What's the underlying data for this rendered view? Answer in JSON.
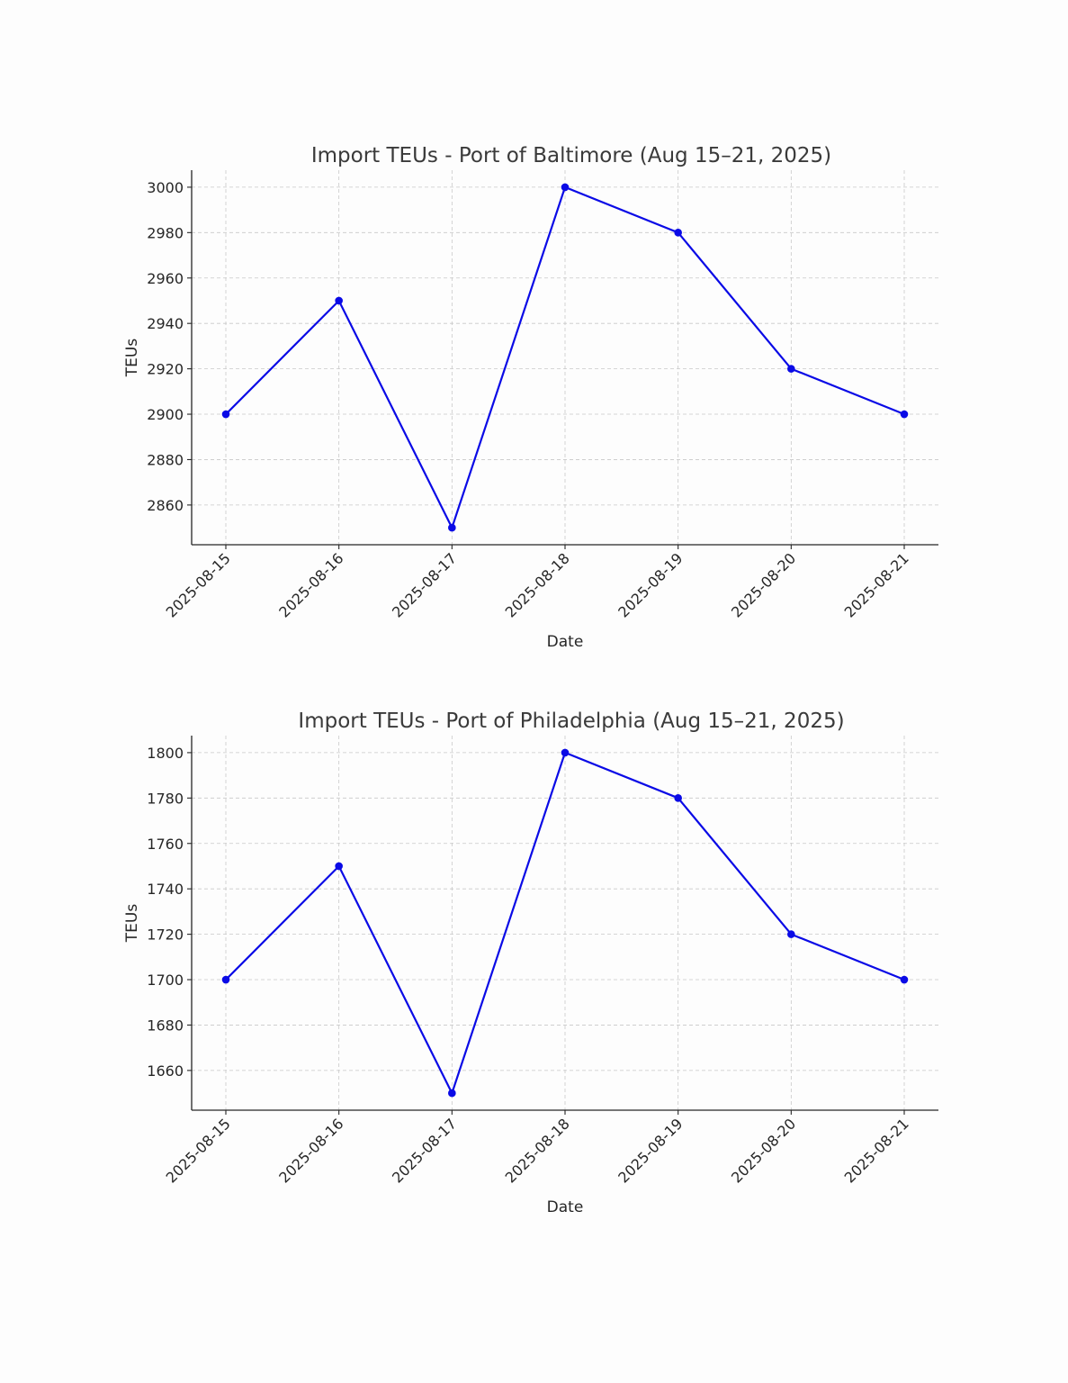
{
  "chart_data": [
    {
      "type": "line",
      "title": "Import TEUs - Port of Baltimore (Aug 15–21, 2025)",
      "xlabel": "Date",
      "ylabel": "TEUs",
      "categories": [
        "2025-08-15",
        "2025-08-16",
        "2025-08-17",
        "2025-08-18",
        "2025-08-19",
        "2025-08-20",
        "2025-08-21"
      ],
      "series": [
        {
          "values": [
            2900,
            2950,
            2850,
            3000,
            2980,
            2920,
            2900
          ],
          "color": "#0a0ae6",
          "marker": "circle"
        }
      ],
      "yticks": [
        2860,
        2880,
        2900,
        2920,
        2940,
        2960,
        2980,
        3000
      ],
      "ylim": [
        2842.5,
        3007.5
      ],
      "grid": true,
      "x_tick_rotation_deg": 45
    },
    {
      "type": "line",
      "title": "Import TEUs - Port of Philadelphia (Aug 15–21, 2025)",
      "xlabel": "Date",
      "ylabel": "TEUs",
      "categories": [
        "2025-08-15",
        "2025-08-16",
        "2025-08-17",
        "2025-08-18",
        "2025-08-19",
        "2025-08-20",
        "2025-08-21"
      ],
      "series": [
        {
          "values": [
            1700,
            1750,
            1650,
            1800,
            1780,
            1720,
            1700
          ],
          "color": "#0a0ae6",
          "marker": "circle"
        }
      ],
      "yticks": [
        1660,
        1680,
        1700,
        1720,
        1740,
        1760,
        1780,
        1800
      ],
      "ylim": [
        1642.5,
        1807.5
      ],
      "grid": true,
      "x_tick_rotation_deg": 45
    }
  ]
}
